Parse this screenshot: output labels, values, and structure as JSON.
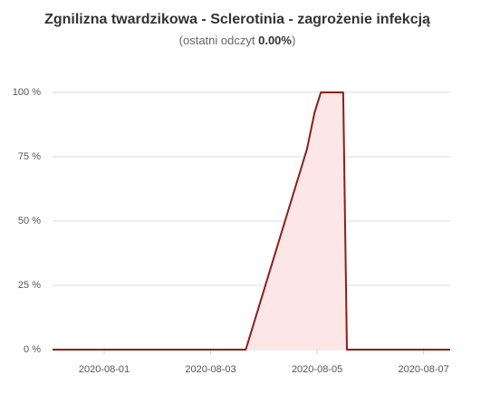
{
  "chart_data": {
    "type": "area",
    "title": "Zgnilizna twardzikowa - Sclerotinia - zagrożenie infekcją",
    "subtitle": {
      "text": "(ostatni odczyt",
      "value": "0.00%",
      "close": ")"
    },
    "x": [
      0.03,
      3.66,
      4.81,
      4.95,
      5.07,
      5.49,
      5.56,
      7.5
    ],
    "series": [
      {
        "name": "Sclerotinia",
        "color": "#8b1f1a",
        "fill": "#fde6e6",
        "values": [
          0,
          0,
          78,
          92,
          100,
          100,
          0,
          0
        ]
      }
    ],
    "xlim": [
      0.03,
      7.5
    ],
    "xticks": [
      {
        "value": 1,
        "label": "2020-08-01"
      },
      {
        "value": 3,
        "label": "2020-08-03"
      },
      {
        "value": 5,
        "label": "2020-08-05"
      },
      {
        "value": 7,
        "label": "2020-08-07"
      }
    ],
    "ylim": [
      0,
      100
    ],
    "yticks": [
      {
        "value": 0,
        "label": "0 %"
      },
      {
        "value": 25,
        "label": "25 %"
      },
      {
        "value": 50,
        "label": "50 %"
      },
      {
        "value": 75,
        "label": "75 %"
      },
      {
        "value": 100,
        "label": "100 %"
      }
    ],
    "grid": true
  }
}
